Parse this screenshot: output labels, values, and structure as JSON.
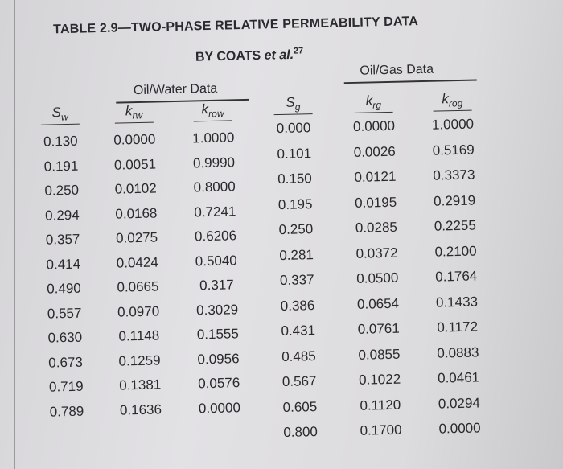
{
  "table": {
    "title": "TABLE 2.9—TWO-PHASE RELATIVE PERMEABILITY DATA",
    "byline": "BY COATS",
    "byline_italic": "et al.",
    "byline_ref": "27",
    "groups": [
      {
        "name": "Oil/Water Data",
        "columns": [
          {
            "symbol": "S",
            "subscript": "w"
          },
          {
            "symbol": "k",
            "subscript": "rw"
          },
          {
            "symbol": "k",
            "subscript": "row"
          }
        ],
        "rows": [
          [
            "0.130",
            "0.0000",
            "1.0000"
          ],
          [
            "0.191",
            "0.0051",
            "0.9990"
          ],
          [
            "0.250",
            "0.0102",
            "0.8000"
          ],
          [
            "0.294",
            "0.0168",
            "0.7241"
          ],
          [
            "0.357",
            "0.0275",
            "0.6206"
          ],
          [
            "0.414",
            "0.0424",
            "0.5040"
          ],
          [
            "0.490",
            "0.0665",
            "0.317"
          ],
          [
            "0.557",
            "0.0970",
            "0.3029"
          ],
          [
            "0.630",
            "0.1148",
            "0.1555"
          ],
          [
            "0.673",
            "0.1259",
            "0.0956"
          ],
          [
            "0.719",
            "0.1381",
            "0.0576"
          ],
          [
            "0.789",
            "0.1636",
            "0.0000"
          ]
        ]
      },
      {
        "name": "Oil/Gas Data",
        "columns": [
          {
            "symbol": "S",
            "subscript": "g"
          },
          {
            "symbol": "k",
            "subscript": "rg"
          },
          {
            "symbol": "k",
            "subscript": "rog"
          }
        ],
        "rows": [
          [
            "0.000",
            "0.0000",
            "1.0000"
          ],
          [
            "0.101",
            "0.0026",
            "0.5169"
          ],
          [
            "0.150",
            "0.0121",
            "0.3373"
          ],
          [
            "0.195",
            "0.0195",
            "0.2919"
          ],
          [
            "0.250",
            "0.0285",
            "0.2255"
          ],
          [
            "0.281",
            "0.0372",
            "0.2100"
          ],
          [
            "0.337",
            "0.0500",
            "0.1764"
          ],
          [
            "0.386",
            "0.0654",
            "0.1433"
          ],
          [
            "0.431",
            "0.0761",
            "0.1172"
          ],
          [
            "0.485",
            "0.0855",
            "0.0883"
          ],
          [
            "0.567",
            "0.1022",
            "0.0461"
          ],
          [
            "0.605",
            "0.1120",
            "0.0294"
          ],
          [
            "0.800",
            "0.1700",
            "0.0000"
          ]
        ]
      }
    ]
  }
}
